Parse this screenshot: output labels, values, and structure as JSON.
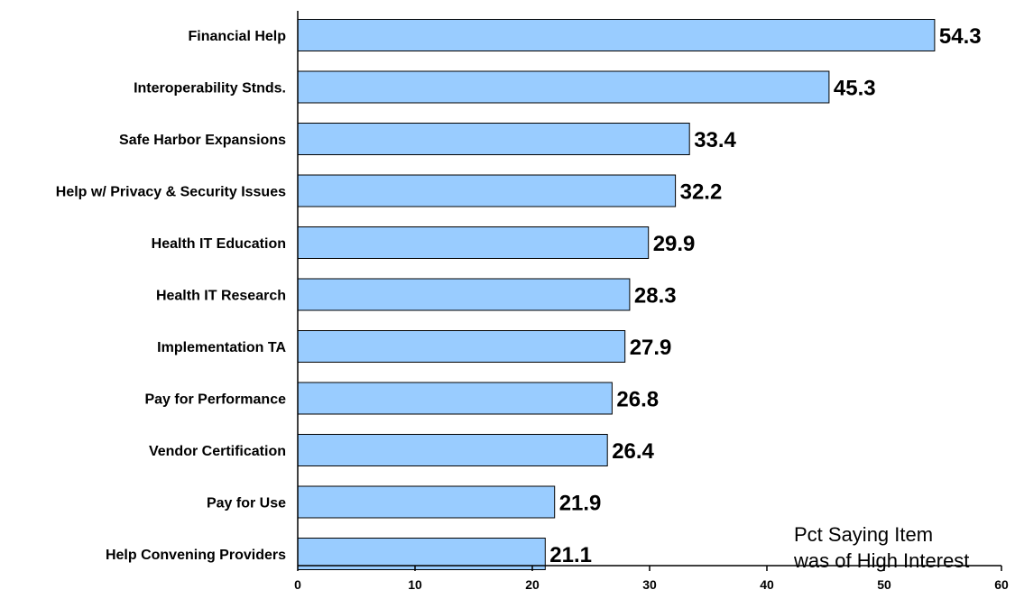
{
  "chart_data": {
    "type": "bar",
    "orientation": "horizontal",
    "categories": [
      "Financial Help",
      "Interoperability Stnds.",
      "Safe Harbor Expansions",
      "Help w/ Privacy & Security Issues",
      "Health IT Education",
      "Health IT Research",
      "Implementation TA",
      "Pay for Performance",
      "Vendor Certification",
      "Pay for Use",
      "Help Convening Providers"
    ],
    "values": [
      54.3,
      45.3,
      33.4,
      32.2,
      29.9,
      28.3,
      27.9,
      26.8,
      26.4,
      21.9,
      21.1
    ],
    "value_labels": [
      "54.3",
      "45.3",
      "33.4",
      "32.2",
      "29.9",
      "28.3",
      "27.9",
      "26.8",
      "26.4",
      "21.9",
      "21.1"
    ],
    "xlim": [
      0,
      60
    ],
    "xticks": [
      "0",
      "10",
      "20",
      "30",
      "40",
      "50",
      "60"
    ],
    "annotation": [
      "Pct Saying Item",
      "was of High Interest"
    ],
    "bar_color": "#99ccff",
    "bar_edge_color": "#000000",
    "grid": false,
    "legend": false
  }
}
